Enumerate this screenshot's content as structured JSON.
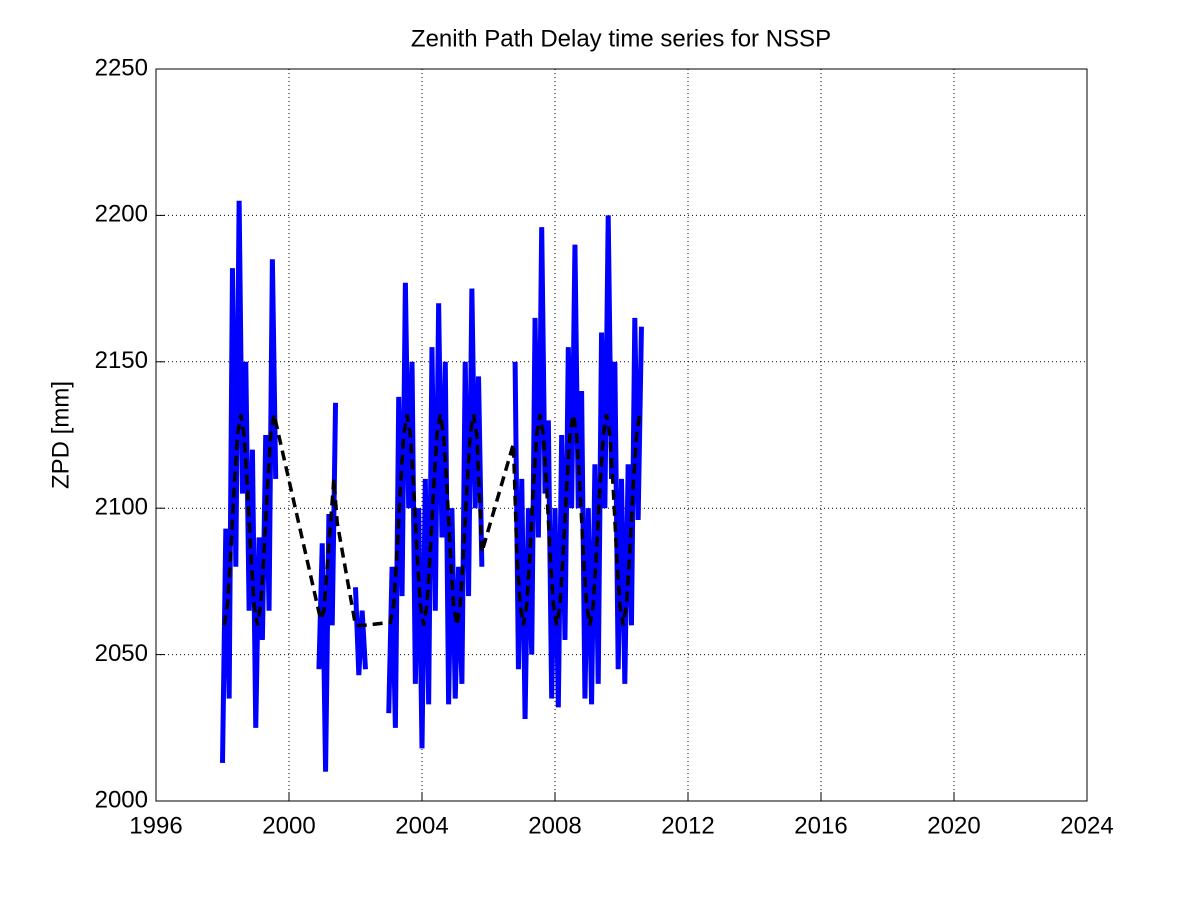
{
  "chart_data": {
    "type": "line",
    "title": "Zenith Path Delay time series for NSSP",
    "ylabel": "ZPD [mm]",
    "xlim": [
      1996,
      2024
    ],
    "xticks": [
      1996,
      2000,
      2004,
      2008,
      2012,
      2016,
      2020,
      2024
    ],
    "ylim": [
      2000,
      2250
    ],
    "yticks": [
      2000,
      2050,
      2100,
      2150,
      2200,
      2250
    ],
    "grid": true,
    "series": [
      {
        "color": "#0000ff",
        "x": [
          1998.0,
          1998.1,
          1998.2,
          1998.3,
          1998.4,
          1998.5,
          1998.6,
          1998.7,
          1998.8,
          1998.9,
          1999.0,
          1999.1,
          1999.2,
          1999.3,
          1999.4,
          1999.5,
          1999.6,
          2000.2,
          2000.9,
          2001.0,
          2001.1,
          2001.2,
          2001.3,
          2001.4,
          2001.7,
          2002.0,
          2002.1,
          2002.2,
          2002.3,
          2002.6,
          2003.0,
          2003.1,
          2003.2,
          2003.3,
          2003.4,
          2003.5,
          2003.6,
          2003.7,
          2003.8,
          2003.9,
          2004.0,
          2004.1,
          2004.2,
          2004.3,
          2004.4,
          2004.5,
          2004.6,
          2004.7,
          2004.8,
          2004.9,
          2005.0,
          2005.1,
          2005.2,
          2005.3,
          2005.4,
          2005.5,
          2005.6,
          2005.7,
          2005.8,
          2006.3,
          2006.8,
          2006.9,
          2007.0,
          2007.1,
          2007.2,
          2007.3,
          2007.4,
          2007.5,
          2007.6,
          2007.7,
          2007.8,
          2007.9,
          2008.0,
          2008.1,
          2008.2,
          2008.3,
          2008.4,
          2008.5,
          2008.6,
          2008.7,
          2008.8,
          2008.9,
          2009.0,
          2009.1,
          2009.2,
          2009.3,
          2009.4,
          2009.5,
          2009.6,
          2009.7,
          2009.8,
          2009.9,
          2010.0,
          2010.1,
          2010.2,
          2010.3,
          2010.4,
          2010.5,
          2010.6
        ],
        "values": [
          2013,
          2093,
          2035,
          2182,
          2080,
          2205,
          2105,
          2150,
          2065,
          2120,
          2025,
          2090,
          2055,
          2125,
          2065,
          2185,
          2110,
          null,
          2045,
          2088,
          2010,
          2098,
          2060,
          2136,
          null,
          2073,
          2043,
          2065,
          2045,
          null,
          2030,
          2080,
          2025,
          2138,
          2070,
          2177,
          2100,
          2150,
          2040,
          2100,
          2018,
          2110,
          2033,
          2155,
          2065,
          2170,
          2090,
          2150,
          2033,
          2100,
          2035,
          2080,
          2040,
          2150,
          2070,
          2175,
          2100,
          2145,
          2080,
          null,
          2150,
          2045,
          2110,
          2028,
          2100,
          2050,
          2165,
          2090,
          2196,
          2105,
          2130,
          2035,
          2100,
          2032,
          2125,
          2055,
          2155,
          2100,
          2190,
          2100,
          2140,
          2035,
          2100,
          2033,
          2115,
          2040,
          2160,
          2100,
          2200,
          2110,
          2150,
          2045,
          2110,
          2040,
          2115,
          2060,
          2165,
          2096,
          2162
        ]
      },
      {
        "color": "#000000",
        "x": [
          1998.05,
          1998.15,
          1998.25,
          1998.35,
          1998.45,
          1998.55,
          1998.65,
          1998.75,
          1998.85,
          1998.95,
          1999.05,
          1999.15,
          1999.25,
          1999.35,
          1999.45,
          1999.55,
          2000.95,
          2001.05,
          2001.35,
          2001.45,
          2002.0,
          2002.25,
          2003.05,
          2003.15,
          2003.25,
          2003.35,
          2003.45,
          2003.55,
          2003.65,
          2003.75,
          2003.85,
          2003.95,
          2004.05,
          2004.15,
          2004.25,
          2004.35,
          2004.45,
          2004.55,
          2004.65,
          2004.75,
          2004.85,
          2004.95,
          2005.05,
          2005.15,
          2005.25,
          2005.35,
          2005.45,
          2005.55,
          2005.65,
          2005.8,
          2006.75,
          2006.85,
          2006.95,
          2007.05,
          2007.15,
          2007.25,
          2007.35,
          2007.45,
          2007.55,
          2007.65,
          2007.75,
          2007.85,
          2007.95,
          2008.05,
          2008.15,
          2008.25,
          2008.35,
          2008.45,
          2008.55,
          2008.65,
          2008.75,
          2008.85,
          2008.95,
          2009.05,
          2009.15,
          2009.25,
          2009.35,
          2009.45,
          2009.55,
          2009.65,
          2009.75,
          2009.85,
          2009.95,
          2010.05,
          2010.15,
          2010.25,
          2010.35,
          2010.45,
          2010.55
        ],
        "values": [
          2060,
          2067,
          2085,
          2107,
          2125,
          2132,
          2125,
          2107,
          2085,
          2067,
          2060,
          2067,
          2085,
          2107,
          2125,
          2132,
          2062,
          2065,
          2110,
          2095,
          2060,
          2060,
          2061,
          2067,
          2085,
          2107,
          2125,
          2132,
          2125,
          2107,
          2085,
          2067,
          2060,
          2067,
          2085,
          2107,
          2125,
          2132,
          2125,
          2107,
          2085,
          2067,
          2060,
          2067,
          2085,
          2107,
          2125,
          2132,
          2125,
          2085,
          2122,
          2085,
          2067,
          2060,
          2067,
          2085,
          2107,
          2125,
          2132,
          2125,
          2107,
          2085,
          2067,
          2060,
          2067,
          2085,
          2107,
          2125,
          2132,
          2125,
          2107,
          2085,
          2067,
          2060,
          2067,
          2085,
          2107,
          2125,
          2132,
          2125,
          2107,
          2085,
          2067,
          2060,
          2067,
          2085,
          2107,
          2125,
          2132
        ]
      }
    ]
  }
}
